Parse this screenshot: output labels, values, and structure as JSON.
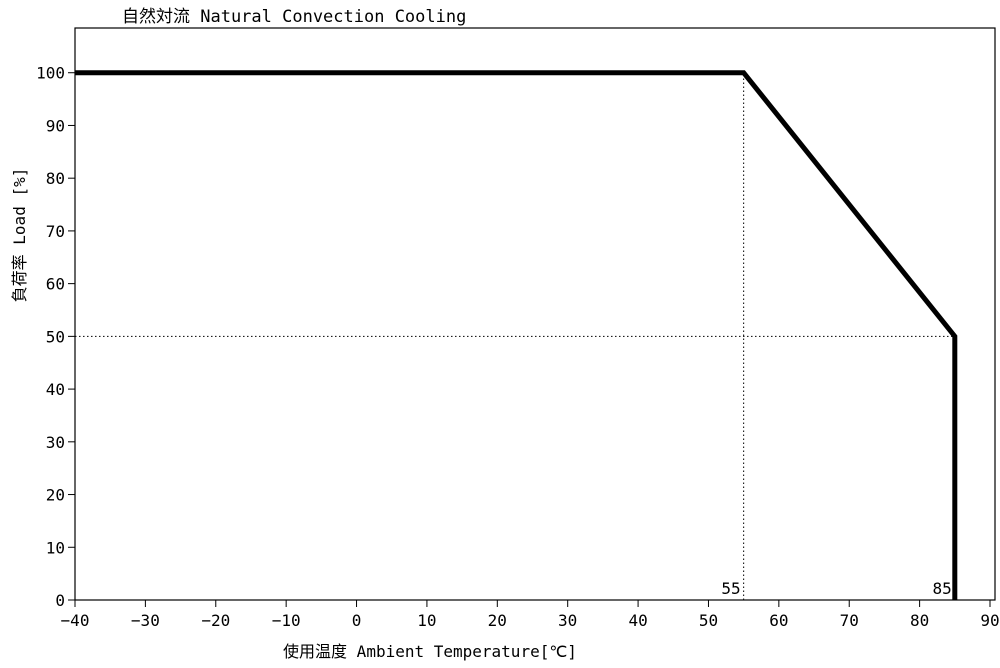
{
  "chart_data": {
    "type": "line",
    "title": "自然対流  Natural Convection Cooling",
    "xlabel": "使用温度  Ambient Temperature[℃]",
    "ylabel": "負荷率  Load [%]",
    "xlim": [
      -40,
      90
    ],
    "ylim": [
      0,
      110
    ],
    "x_ticks": [
      "−40",
      "−30",
      "−20",
      "−10",
      "0",
      "10",
      "20",
      "30",
      "40",
      "50",
      "60",
      "70",
      "80",
      "90"
    ],
    "y_ticks": [
      "0",
      "10",
      "20",
      "30",
      "40",
      "50",
      "60",
      "70",
      "80",
      "90",
      "100"
    ],
    "grid": false,
    "series": [
      {
        "points": [
          [
            -40,
            100
          ],
          [
            55,
            100
          ],
          [
            85,
            50
          ],
          [
            85,
            0
          ]
        ]
      }
    ],
    "reference_lines": [
      {
        "orientation": "vertical",
        "x": 55,
        "from_y": 0,
        "to_y": 100
      },
      {
        "orientation": "horizontal",
        "y": 50,
        "from_x": -40,
        "to_x": 85
      }
    ],
    "annotations": [
      {
        "text": "55",
        "x": 55,
        "y": 0
      },
      {
        "text": "85",
        "x": 85,
        "y": 0
      }
    ]
  }
}
